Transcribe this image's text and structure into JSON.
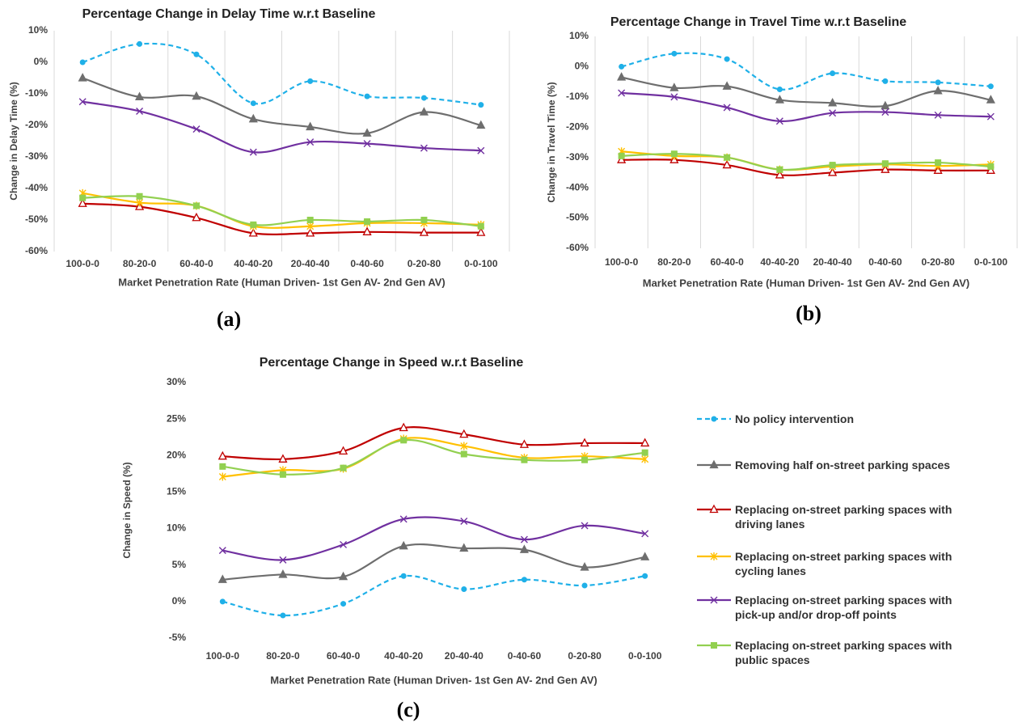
{
  "chart_data": [
    {
      "type": "line",
      "title": "Percentage Change in Delay Time  w.r.t Baseline",
      "caption": "(a)",
      "y_label": "Change in Delay Time (%)",
      "x_label": "Market Penetration Rate (Human Driven- 1st Gen AV- 2nd Gen AV)",
      "categories": [
        "100-0-0",
        "80-20-0",
        "60-40-0",
        "40-40-20",
        "20-40-40",
        "0-40-60",
        "0-20-80",
        "0-0-100"
      ],
      "ylim": [
        -60,
        10
      ],
      "yticks": [
        {
          "value": 10,
          "label": "10%"
        },
        {
          "value": 0,
          "label": "0%"
        },
        {
          "value": -10,
          "label": "-10%"
        },
        {
          "value": -20,
          "label": "-20%"
        },
        {
          "value": -30,
          "label": "-30%"
        },
        {
          "value": -40,
          "label": "-40%"
        },
        {
          "value": -50,
          "label": "-50%"
        },
        {
          "value": -60,
          "label": "-60%"
        }
      ],
      "vgrid": true,
      "series": [
        {
          "color": "#1fb0e8",
          "dashed": true,
          "marker": "circle",
          "values": [
            0,
            5.8,
            2.5,
            -13,
            -6,
            -10.8,
            -11.3,
            -13.5
          ]
        },
        {
          "color": "#6e6e6e",
          "marker": "triangle",
          "values": [
            -5,
            -11,
            -10.8,
            -18,
            -20.5,
            -22.5,
            -15.8,
            -20
          ]
        },
        {
          "color": "#c00000",
          "marker": "open-triangle",
          "values": [
            -44.8,
            -45.8,
            -49.3,
            -54.2,
            -54.2,
            -53.8,
            -54,
            -54
          ]
        },
        {
          "color": "#ffc000",
          "marker": "star",
          "values": [
            -41.5,
            -44.5,
            -45.5,
            -52,
            -52,
            -51,
            -51,
            -51.5
          ]
        },
        {
          "color": "#7030a0",
          "marker": "x",
          "values": [
            -12.5,
            -15.5,
            -21.2,
            -28.5,
            -25.3,
            -25.8,
            -27.2,
            -28
          ]
        },
        {
          "color": "#92d050",
          "marker": "square",
          "values": [
            -43,
            -42.5,
            -45.5,
            -51.5,
            -50,
            -50.5,
            -50,
            -52
          ]
        }
      ]
    },
    {
      "type": "line",
      "title": "Percentage Change in Travel Time  w.r.t Baseline",
      "caption": "(b)",
      "y_label": "Change in Travel Time (%)",
      "x_label": "Market Penetration Rate (Human Driven- 1st Gen AV- 2nd Gen AV)",
      "categories": [
        "100-0-0",
        "80-20-0",
        "60-40-0",
        "40-40-20",
        "20-40-40",
        "0-40-60",
        "0-20-80",
        "0-0-100"
      ],
      "ylim": [
        -60,
        10
      ],
      "yticks": [
        {
          "value": 10,
          "label": "10%"
        },
        {
          "value": 0,
          "label": "0%"
        },
        {
          "value": -10,
          "label": "-10%"
        },
        {
          "value": -20,
          "label": "-20%"
        },
        {
          "value": -30,
          "label": "-30%"
        },
        {
          "value": -40,
          "label": "-40%"
        },
        {
          "value": -50,
          "label": "-50%"
        },
        {
          "value": -60,
          "label": "-60%"
        }
      ],
      "vgrid": true,
      "series": [
        {
          "color": "#1fb0e8",
          "dashed": true,
          "marker": "circle",
          "values": [
            0,
            4.3,
            2.5,
            -7.5,
            -2.2,
            -4.8,
            -5.2,
            -6.5
          ]
        },
        {
          "color": "#6e6e6e",
          "marker": "triangle",
          "values": [
            -3.5,
            -7,
            -6.5,
            -11,
            -12,
            -13,
            -8,
            -11
          ]
        },
        {
          "color": "#c00000",
          "marker": "open-triangle",
          "values": [
            -30.8,
            -30.8,
            -32.5,
            -35.8,
            -35,
            -34,
            -34.3,
            -34.3
          ]
        },
        {
          "color": "#ffc000",
          "marker": "star",
          "values": [
            -28,
            -29.5,
            -30,
            -34,
            -33,
            -32.3,
            -32.8,
            -32.3
          ]
        },
        {
          "color": "#7030a0",
          "marker": "x",
          "values": [
            -8.7,
            -10,
            -13.5,
            -18,
            -15.3,
            -15,
            -16,
            -16.5
          ]
        },
        {
          "color": "#92d050",
          "marker": "square",
          "values": [
            -29.5,
            -28.8,
            -30,
            -34,
            -32.5,
            -32,
            -31.7,
            -33
          ]
        }
      ]
    },
    {
      "type": "line",
      "title": "Percentage Change in Speed w.r.t Baseline",
      "caption": "(c)",
      "y_label": "Change in Speed (%)",
      "x_label": "Market Penetration Rate (Human Driven- 1st Gen AV- 2nd Gen AV)",
      "categories": [
        "100-0-0",
        "80-20-0",
        "60-40-0",
        "40-40-20",
        "20-40-40",
        "0-40-60",
        "0-20-80",
        "0-0-100"
      ],
      "ylim": [
        -5,
        30
      ],
      "yticks": [
        {
          "value": 30,
          "label": "30%"
        },
        {
          "value": 25,
          "label": "25%"
        },
        {
          "value": 20,
          "label": "20%"
        },
        {
          "value": 15,
          "label": "15%"
        },
        {
          "value": 10,
          "label": "10%"
        },
        {
          "value": 5,
          "label": "5%"
        },
        {
          "value": 0,
          "label": "0%"
        },
        {
          "value": -5,
          "label": "-5%"
        }
      ],
      "vgrid": false,
      "legend": "right",
      "series": [
        {
          "name": "No policy intervention",
          "color": "#1fb0e8",
          "dashed": true,
          "marker": "circle",
          "values": [
            0,
            -1.9,
            -0.3,
            3.5,
            1.7,
            3,
            2.2,
            3.5
          ]
        },
        {
          "name": "Removing half on-street parking spaces",
          "color": "#6e6e6e",
          "marker": "triangle",
          "values": [
            3,
            3.7,
            3.4,
            7.6,
            7.3,
            7.1,
            4.7,
            6.1
          ]
        },
        {
          "name": "Replacing on-street parking spaces with driving lanes",
          "color": "#c00000",
          "marker": "open-triangle",
          "values": [
            19.9,
            19.5,
            20.6,
            23.8,
            22.9,
            21.5,
            21.7,
            21.7
          ]
        },
        {
          "name": "Replacing on-street parking spaces with cycling lanes",
          "color": "#ffc000",
          "marker": "star",
          "values": [
            17.1,
            18,
            18.2,
            22.3,
            21.3,
            19.7,
            19.9,
            19.5
          ]
        },
        {
          "name": "Replacing on-street parking spaces with pick-up and/or drop-off points",
          "color": "#7030a0",
          "marker": "x",
          "values": [
            7,
            5.7,
            7.8,
            11.3,
            11,
            8.5,
            10.4,
            9.3
          ]
        },
        {
          "name": "Replacing on-street parking spaces with public spaces",
          "color": "#92d050",
          "marker": "square",
          "values": [
            18.5,
            17.4,
            18.3,
            22.1,
            20.2,
            19.4,
            19.4,
            20.4
          ]
        }
      ]
    }
  ]
}
